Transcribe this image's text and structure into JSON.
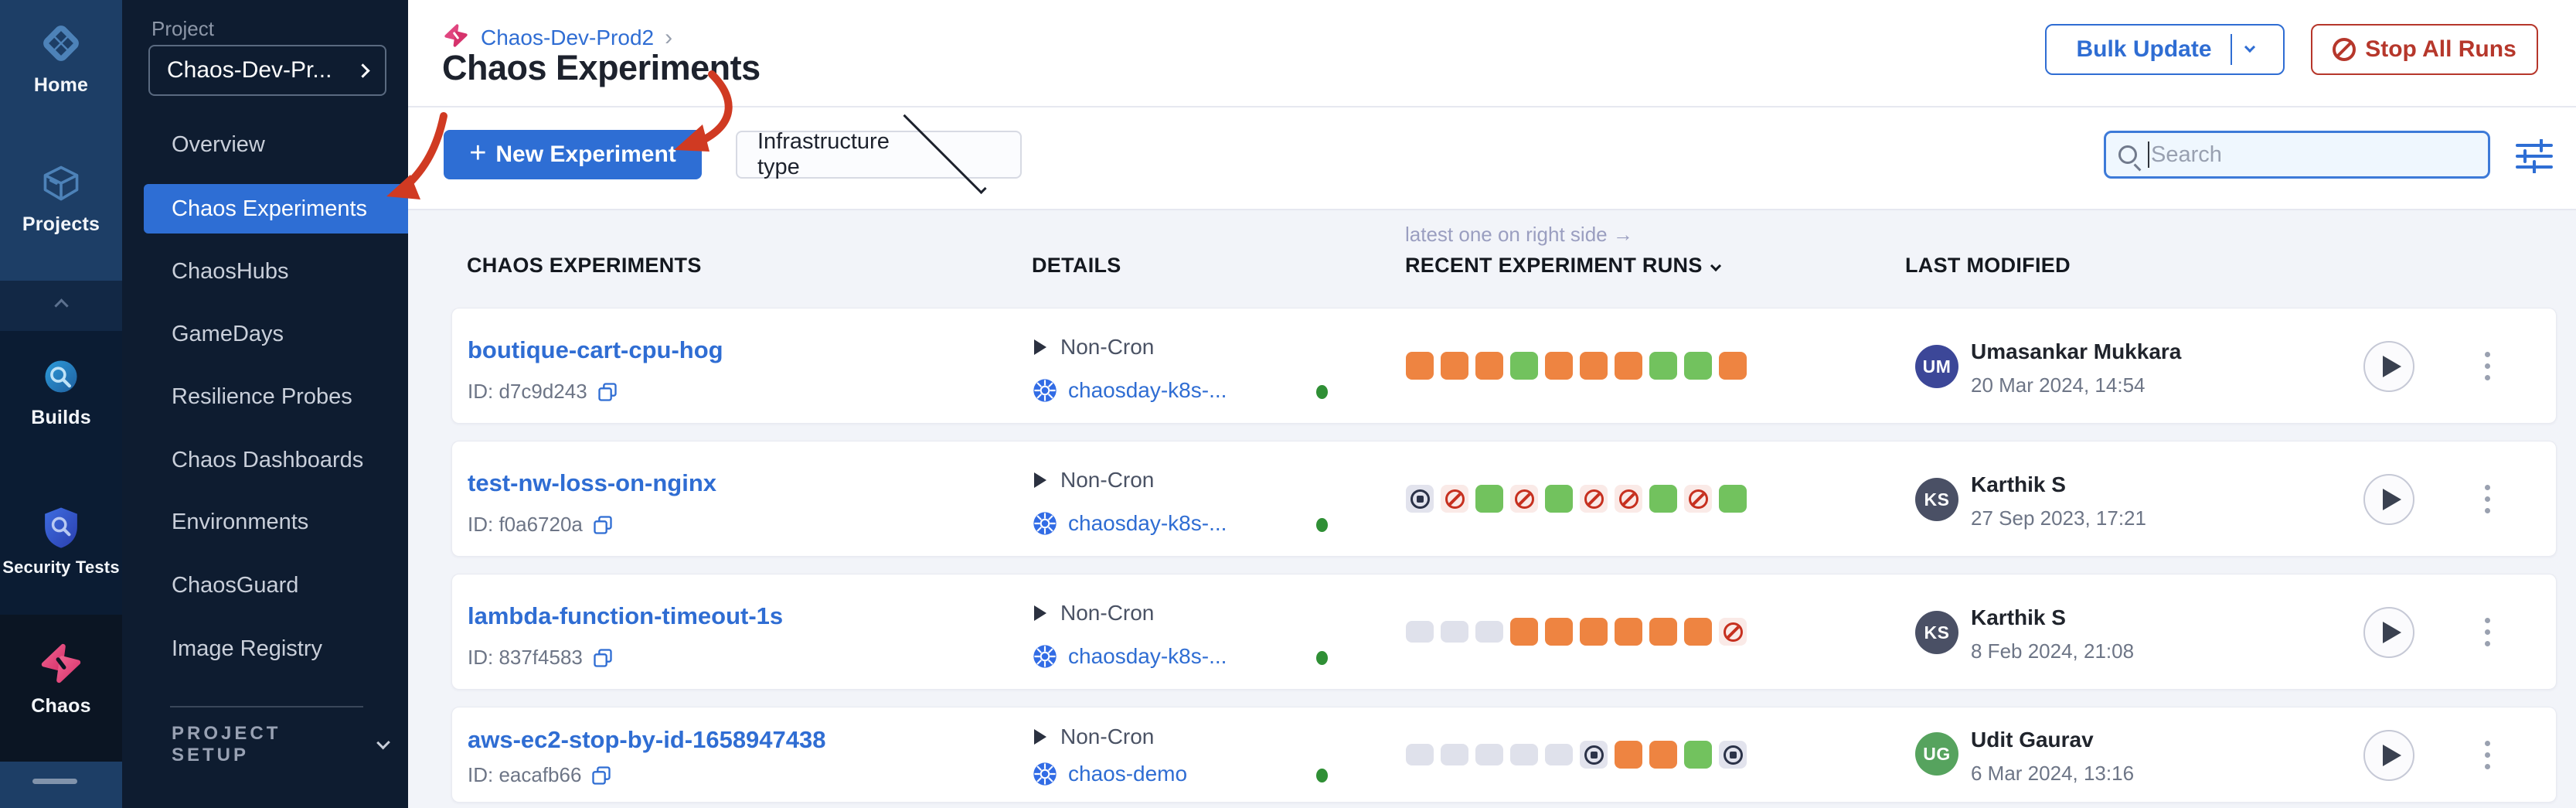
{
  "rail": {
    "labels": [
      "Home",
      "Projects",
      "Builds",
      "Security Tests",
      "Chaos"
    ]
  },
  "sidebar": {
    "section_label": "Project",
    "project_name": "Chaos-Dev-Pr...",
    "menu": [
      "Overview",
      "Chaos Experiments",
      "ChaosHubs",
      "GameDays",
      "Resilience Probes",
      "Chaos Dashboards",
      "Environments",
      "ChaosGuard",
      "Image Registry"
    ],
    "setup_label": "PROJECT SETUP"
  },
  "header": {
    "breadcrumb_project": "Chaos-Dev-Prod2",
    "breadcrumb_sep": "›",
    "title": "Chaos Experiments",
    "bulk_update": "Bulk Update",
    "stop_all_runs": "Stop All Runs"
  },
  "toolbar": {
    "plus": "+",
    "new_experiment": "New Experiment",
    "infrastructure_type": "Infrastructure type",
    "search_placeholder": "Search"
  },
  "table": {
    "hint": "latest one on right side →",
    "columns": [
      "CHAOS EXPERIMENTS",
      "DETAILS",
      "RECENT EXPERIMENT RUNS",
      "LAST MODIFIED"
    ],
    "rows": [
      {
        "name": "boutique-cart-cpu-hog",
        "id": "ID: d7c9d243",
        "schedule": "Non-Cron",
        "infra": "chaosday-k8s-...",
        "runs": [
          "orange",
          "orange",
          "orange",
          "green",
          "orange",
          "orange",
          "orange",
          "green",
          "green",
          "orange"
        ],
        "initials": "UM",
        "user": "Umasankar Mukkara",
        "modified": "20 Mar 2024, 14:54",
        "avatar_color": "#3c4798"
      },
      {
        "name": "test-nw-loss-on-nginx",
        "id": "ID: f0a6720a",
        "schedule": "Non-Cron",
        "infra": "chaosday-k8s-...",
        "runs": [
          "stopped",
          "failed",
          "green",
          "failed",
          "green",
          "failed",
          "failed",
          "green",
          "failed",
          "green"
        ],
        "initials": "KS",
        "user": "Karthik S",
        "modified": "27 Sep 2023, 17:21",
        "avatar_color": "#4a5065"
      },
      {
        "name": "lambda-function-timeout-1s",
        "id": "ID: 837f4583",
        "schedule": "Non-Cron",
        "infra": "chaosday-k8s-...",
        "runs": [
          "empty",
          "empty",
          "empty",
          "orange",
          "orange",
          "orange",
          "orange",
          "orange",
          "orange",
          "failed"
        ],
        "initials": "KS",
        "user": "Karthik S",
        "modified": "8 Feb 2024, 21:08",
        "avatar_color": "#4a5065"
      },
      {
        "name": "aws-ec2-stop-by-id-1658947438",
        "id": "ID: eacafb66",
        "schedule": "Non-Cron",
        "infra": "chaos-demo",
        "runs": [
          "empty",
          "empty",
          "empty",
          "empty",
          "empty",
          "stopped",
          "orange",
          "orange",
          "green",
          "stopped"
        ],
        "initials": "UG",
        "user": "Udit Gaurav",
        "modified": "6 Mar 2024, 13:16",
        "avatar_color": "#56a35e"
      }
    ]
  },
  "colors": {
    "accent": "#2f6dd3",
    "danger": "#b6372b",
    "run_orange": "#ee8441",
    "run_green": "#72c25e",
    "annotation": "#d03a22"
  }
}
